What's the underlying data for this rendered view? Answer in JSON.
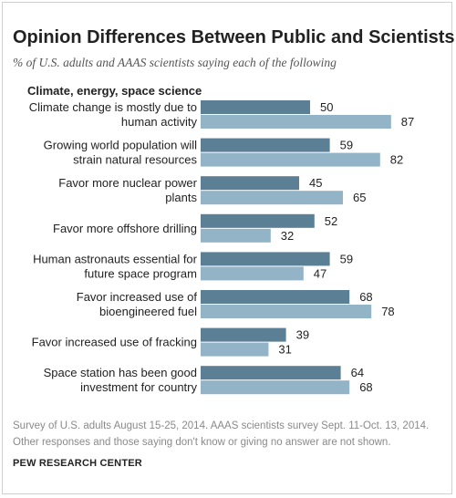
{
  "title": "Opinion Differences Between Public and Scientists",
  "subtitle": "% of U.S. adults and AAAS scientists saying each of the following",
  "section_label": "Climate, energy, space science",
  "footnote_line1": "Survey of U.S. adults August 15-25, 2014. AAAS scientists survey Sept. 11-Oct. 13, 2014.",
  "footnote_line2": "Other responses and those saying don't know or giving no answer are not shown.",
  "source": "PEW RESEARCH CENTER",
  "colors": {
    "public": "#5b7f95",
    "scientists": "#93b3c6"
  },
  "chart_data": {
    "type": "bar",
    "orientation": "horizontal",
    "categories": [
      [
        "Climate change is mostly due to",
        "human activity"
      ],
      [
        "Growing world population will",
        "strain natural resources"
      ],
      [
        "Favor more nuclear power",
        "plants"
      ],
      [
        "Favor more offshore drilling"
      ],
      [
        "Human astronauts essential for",
        "future space program"
      ],
      [
        "Favor increased use of",
        "bioengineered fuel"
      ],
      [
        "Favor increased use of fracking"
      ],
      [
        "Space station has been good",
        "investment for country"
      ]
    ],
    "series": [
      {
        "values": [
          50,
          59,
          45,
          52,
          59,
          68,
          39,
          64
        ]
      },
      {
        "values": [
          87,
          82,
          65,
          32,
          47,
          78,
          31,
          68
        ]
      }
    ],
    "xlim": [
      0,
      100
    ]
  }
}
